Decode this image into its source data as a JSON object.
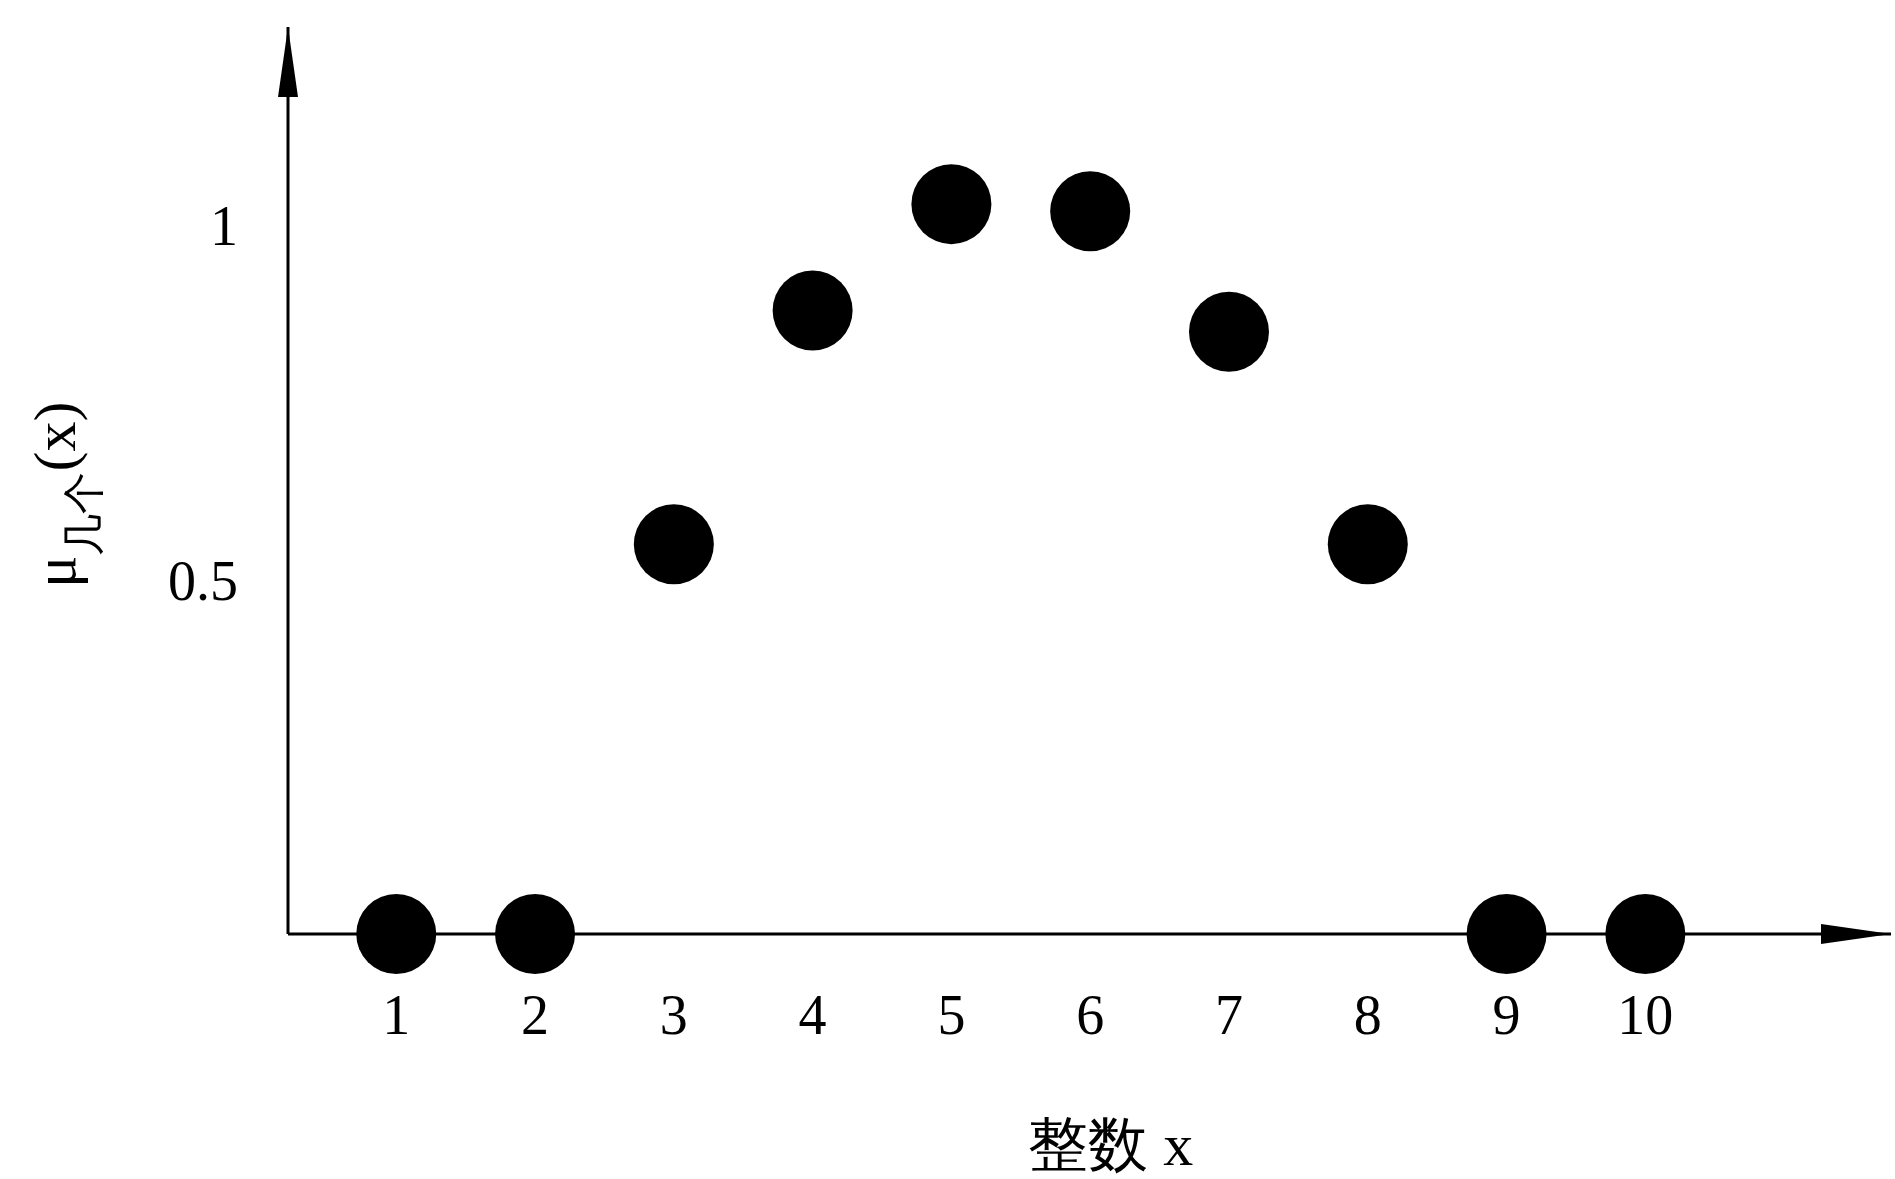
{
  "chart_data": {
    "type": "scatter",
    "xlabel": "整数 x",
    "ylabel": "μ$_{几个}$(x)",
    "x": [
      1,
      2,
      3,
      4,
      5,
      6,
      7,
      8,
      9,
      10
    ],
    "series": [
      {
        "color": "#000000",
        "values": [
          0,
          0,
          0.55,
          0.88,
          1.03,
          1.02,
          0.85,
          0.55,
          0,
          0
        ]
      }
    ],
    "xlim": [
      0.22,
      11.77
    ],
    "ylim": [
      0,
      1.28
    ],
    "xticks": [
      1,
      2,
      3,
      4,
      5,
      6,
      7,
      8,
      9,
      10
    ],
    "yticks": [
      0.5,
      1
    ],
    "marker": "circle",
    "grid": false
  }
}
